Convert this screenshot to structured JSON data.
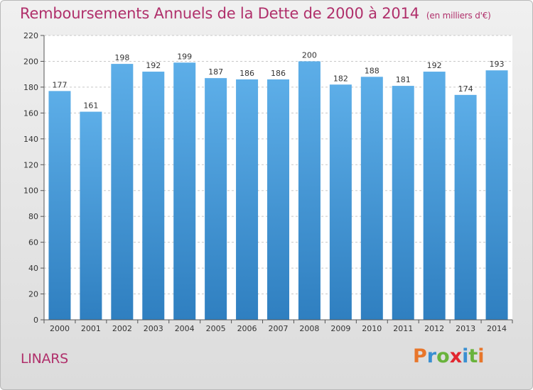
{
  "title": "Remboursements Annuels de la Dette de 2000 à 2014",
  "unit_note": "(en milliers d'€)",
  "commune": "LINARS",
  "logo": {
    "letters": [
      "P",
      "r",
      "o",
      "x",
      "i",
      "t",
      "i"
    ],
    "colors": [
      "#e8762b",
      "#3a8fd1",
      "#69b33c",
      "#e2262f",
      "#3a8fd1",
      "#69b33c",
      "#e8762b"
    ]
  },
  "colors": {
    "bar_light": "#5daee8",
    "bar_dark": "#2f7fc0",
    "title": "#b0306b"
  },
  "chart_data": {
    "type": "bar",
    "categories": [
      "2000",
      "2001",
      "2002",
      "2003",
      "2004",
      "2005",
      "2006",
      "2007",
      "2008",
      "2009",
      "2010",
      "2011",
      "2012",
      "2013",
      "2014"
    ],
    "values": [
      177,
      161,
      198,
      192,
      199,
      187,
      186,
      186,
      200,
      182,
      188,
      181,
      192,
      174,
      193
    ],
    "ylim": [
      0,
      220
    ],
    "yticks": [
      0,
      20,
      40,
      60,
      80,
      100,
      120,
      140,
      160,
      180,
      200,
      220
    ],
    "grid": true
  }
}
